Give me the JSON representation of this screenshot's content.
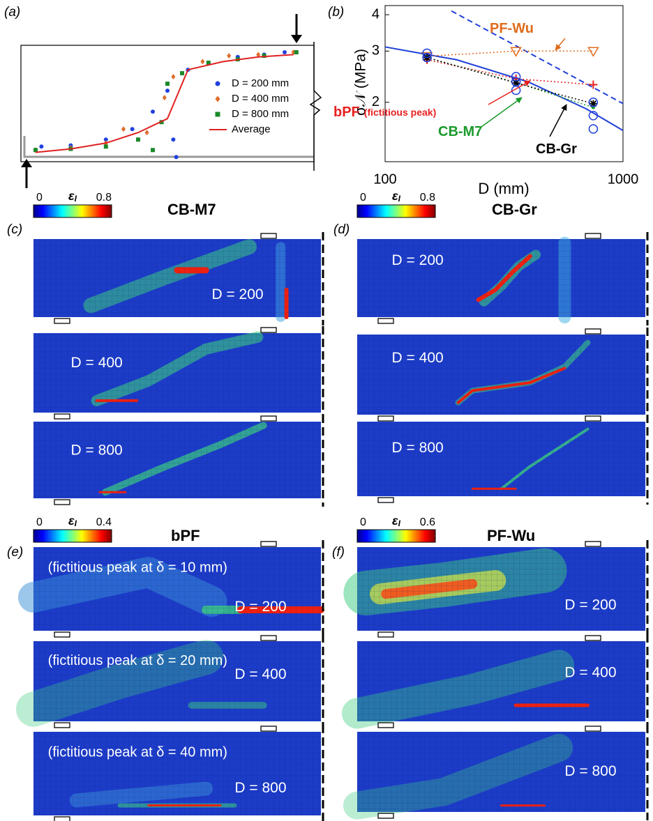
{
  "panel_labels": {
    "a": "(a)",
    "b": "(b)"
  },
  "chart_data": [
    {
      "type": "scatter",
      "xlim": [
        0,
        100
      ],
      "ylim": [
        0,
        100
      ],
      "legend": "right",
      "series": [
        {
          "name": "D = 200 mm",
          "color": "#2040e0",
          "marker": "circle",
          "x": [
            7,
            17,
            29,
            38,
            45,
            50,
            52,
            53,
            57,
            64,
            74,
            83,
            90
          ],
          "values": [
            13,
            14,
            19,
            28,
            43,
            61,
            19,
            4,
            79,
            85,
            90,
            92,
            94
          ]
        },
        {
          "name": "D = 400 mm",
          "color": "#e06c2c",
          "marker": "diamond",
          "x": [
            5,
            17,
            29,
            35,
            43,
            49,
            52,
            62,
            71,
            81,
            93
          ],
          "values": [
            10,
            12,
            16,
            28,
            25,
            55,
            73,
            86,
            91,
            92,
            94
          ]
        },
        {
          "name": "D = 800 mm",
          "color": "#1a8a2a",
          "marker": "square",
          "x": [
            5,
            17,
            29,
            40,
            45,
            48,
            50,
            55,
            64,
            74,
            83,
            94
          ],
          "values": [
            10,
            11,
            13,
            19,
            10,
            34,
            67,
            76,
            85,
            88,
            91,
            94
          ]
        },
        {
          "name": "Average",
          "color": "#e02020",
          "marker": "line",
          "x": [
            5,
            17,
            29,
            40,
            50,
            54,
            57,
            69,
            81,
            93
          ],
          "values": [
            8,
            11,
            16,
            25,
            37,
            61,
            79,
            86,
            90,
            92
          ]
        }
      ]
    },
    {
      "type": "line",
      "xlabel": "D (mm)",
      "ylabel": "σ𝒩 (MPa)",
      "xlog": true,
      "ylog": true,
      "xlim": [
        100,
        1000
      ],
      "ylim": [
        1.25,
        4.3
      ],
      "xticks": [
        100,
        1000
      ],
      "yticks": [
        2,
        3,
        4
      ],
      "series": [
        {
          "color": "#1f3fd8",
          "style": "solid",
          "marker": "none",
          "x": [
            100,
            200,
            400,
            700,
            1000
          ],
          "values": [
            3.1,
            2.8,
            2.35,
            1.9,
            1.6
          ]
        },
        {
          "color": "#1f3fd8",
          "style": "dashed",
          "marker": "none",
          "x": [
            190,
            1000
          ],
          "values": [
            4.12,
            1.98
          ]
        },
        {
          "name": "PF-Wu",
          "color": "#e06c1c",
          "style": "dotted",
          "marker": "triangle",
          "x": [
            150,
            355,
            750
          ],
          "values": [
            2.88,
            3.0,
            3.0
          ]
        },
        {
          "name": "bPF",
          "annotation": "(fictitious peak)",
          "color": "#e82020",
          "style": "dotted",
          "marker": "plus",
          "x": [
            150,
            355,
            750
          ],
          "values": [
            2.8,
            2.41,
            2.3
          ]
        },
        {
          "name": "CB-M7",
          "color": "#1a9a2a",
          "style": "dotted",
          "marker": "dot",
          "x": [
            150,
            355,
            750
          ],
          "values": [
            2.85,
            2.34,
            1.92
          ]
        },
        {
          "name": "CB-Gr",
          "color": "#000000",
          "style": "dotted",
          "marker": "star",
          "x": [
            150,
            355,
            750
          ],
          "values": [
            2.85,
            2.33,
            1.98
          ]
        },
        {
          "color": "#1f3fd8",
          "style": "none",
          "marker": "circle",
          "x": [
            150,
            150,
            355,
            355,
            355,
            750,
            750,
            750
          ],
          "values": [
            2.95,
            2.85,
            2.45,
            2.35,
            2.2,
            2.0,
            1.8,
            1.62
          ]
        }
      ]
    }
  ],
  "contour_panels": [
    {
      "label": "(c)",
      "title": "CB-M7",
      "colorbar": {
        "symbol": "ε",
        "subscript": "I",
        "min": 0,
        "max": 0.8
      },
      "subplots": [
        {
          "label": "D = 200"
        },
        {
          "label": "D = 400"
        },
        {
          "label": "D = 800"
        }
      ]
    },
    {
      "label": "(d)",
      "title": "CB-Gr",
      "colorbar": {
        "symbol": "ε",
        "subscript": "I",
        "min": 0,
        "max": 0.8
      },
      "subplots": [
        {
          "label": "D = 200"
        },
        {
          "label": "D = 400"
        },
        {
          "label": "D = 800"
        }
      ]
    },
    {
      "label": "(e)",
      "title": "bPF",
      "colorbar": {
        "symbol": "ε",
        "subscript": "I",
        "min": 0,
        "max": 0.4
      },
      "subplots": [
        {
          "note": "(fictitious peak at δ = 10 mm)",
          "label": "D = 200"
        },
        {
          "note": "(fictitious peak at δ = 20 mm)",
          "label": "D = 400"
        },
        {
          "note": "(fictitious peak at δ = 40 mm)",
          "label": "D = 800"
        }
      ]
    },
    {
      "label": "(f)",
      "title": "PF-Wu",
      "colorbar": {
        "symbol": "ε",
        "subscript": "I",
        "min": 0,
        "max": 0.6
      },
      "subplots": [
        {
          "label": "D = 200"
        },
        {
          "label": "D = 400"
        },
        {
          "label": "D = 800"
        }
      ]
    }
  ]
}
